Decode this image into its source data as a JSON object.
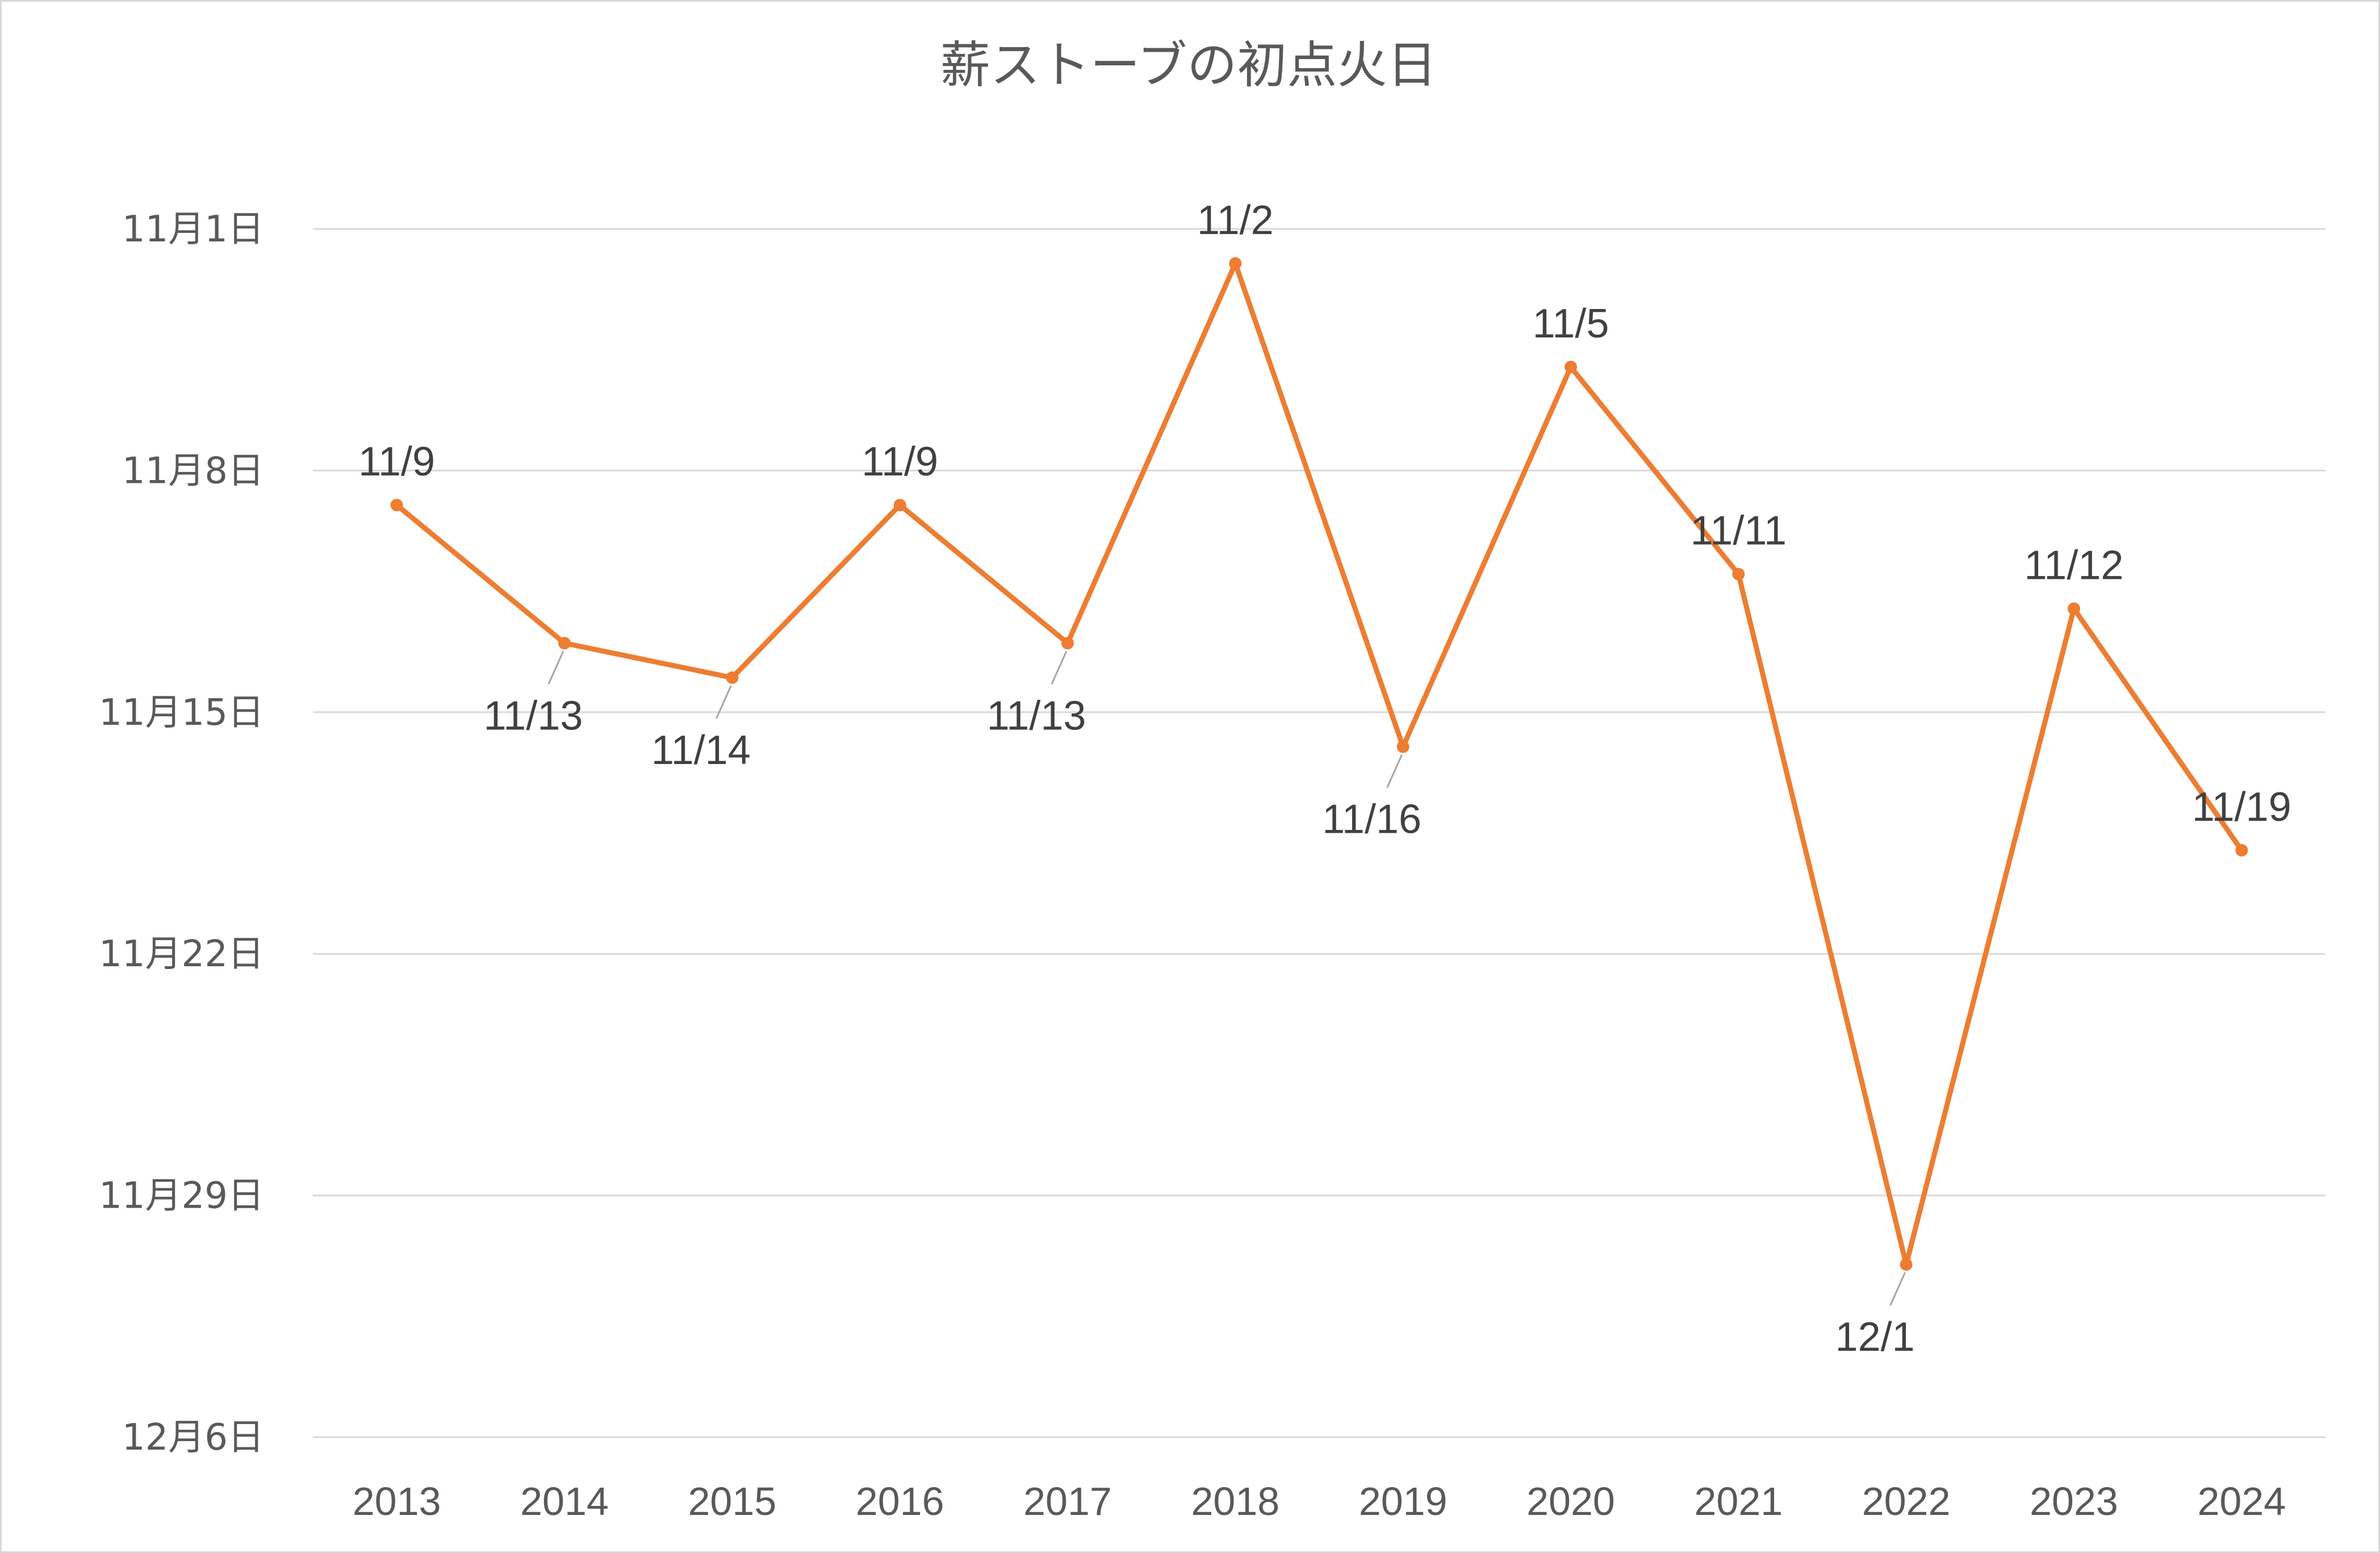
{
  "chart_data": {
    "type": "line",
    "title": "薪ストーブの初点火日",
    "xlabel": "",
    "ylabel": "",
    "categories": [
      "2013",
      "2014",
      "2015",
      "2016",
      "2017",
      "2018",
      "2019",
      "2020",
      "2021",
      "2022",
      "2023",
      "2024"
    ],
    "y_axis": {
      "direction": "reversed",
      "min": "11月1日",
      "max": "12月6日",
      "ticks": [
        {
          "date": "11-01",
          "label": "11月1日"
        },
        {
          "date": "11-08",
          "label": "11月8日"
        },
        {
          "date": "11-15",
          "label": "11月15日"
        },
        {
          "date": "11-22",
          "label": "11月22日"
        },
        {
          "date": "11-29",
          "label": "11月29日"
        },
        {
          "date": "12-06",
          "label": "12月6日"
        }
      ]
    },
    "grid": true,
    "legend": "none",
    "series": [
      {
        "color": "#ed7d31",
        "values": [
          "11-09",
          "11-13",
          "11-14",
          "11-09",
          "11-13",
          "11-02",
          "11-16",
          "11-05",
          "11-11",
          "12-01",
          "11-12",
          "11-19"
        ],
        "labels": [
          "11/9",
          "11/13",
          "11/14",
          "11/9",
          "11/13",
          "11/2",
          "11/16",
          "11/5",
          "11/11",
          "12/1",
          "11/12",
          "11/19"
        ],
        "label_positions": [
          "above",
          "below",
          "below",
          "above",
          "below",
          "above",
          "below",
          "above",
          "above",
          "below",
          "above",
          "above"
        ]
      }
    ]
  }
}
